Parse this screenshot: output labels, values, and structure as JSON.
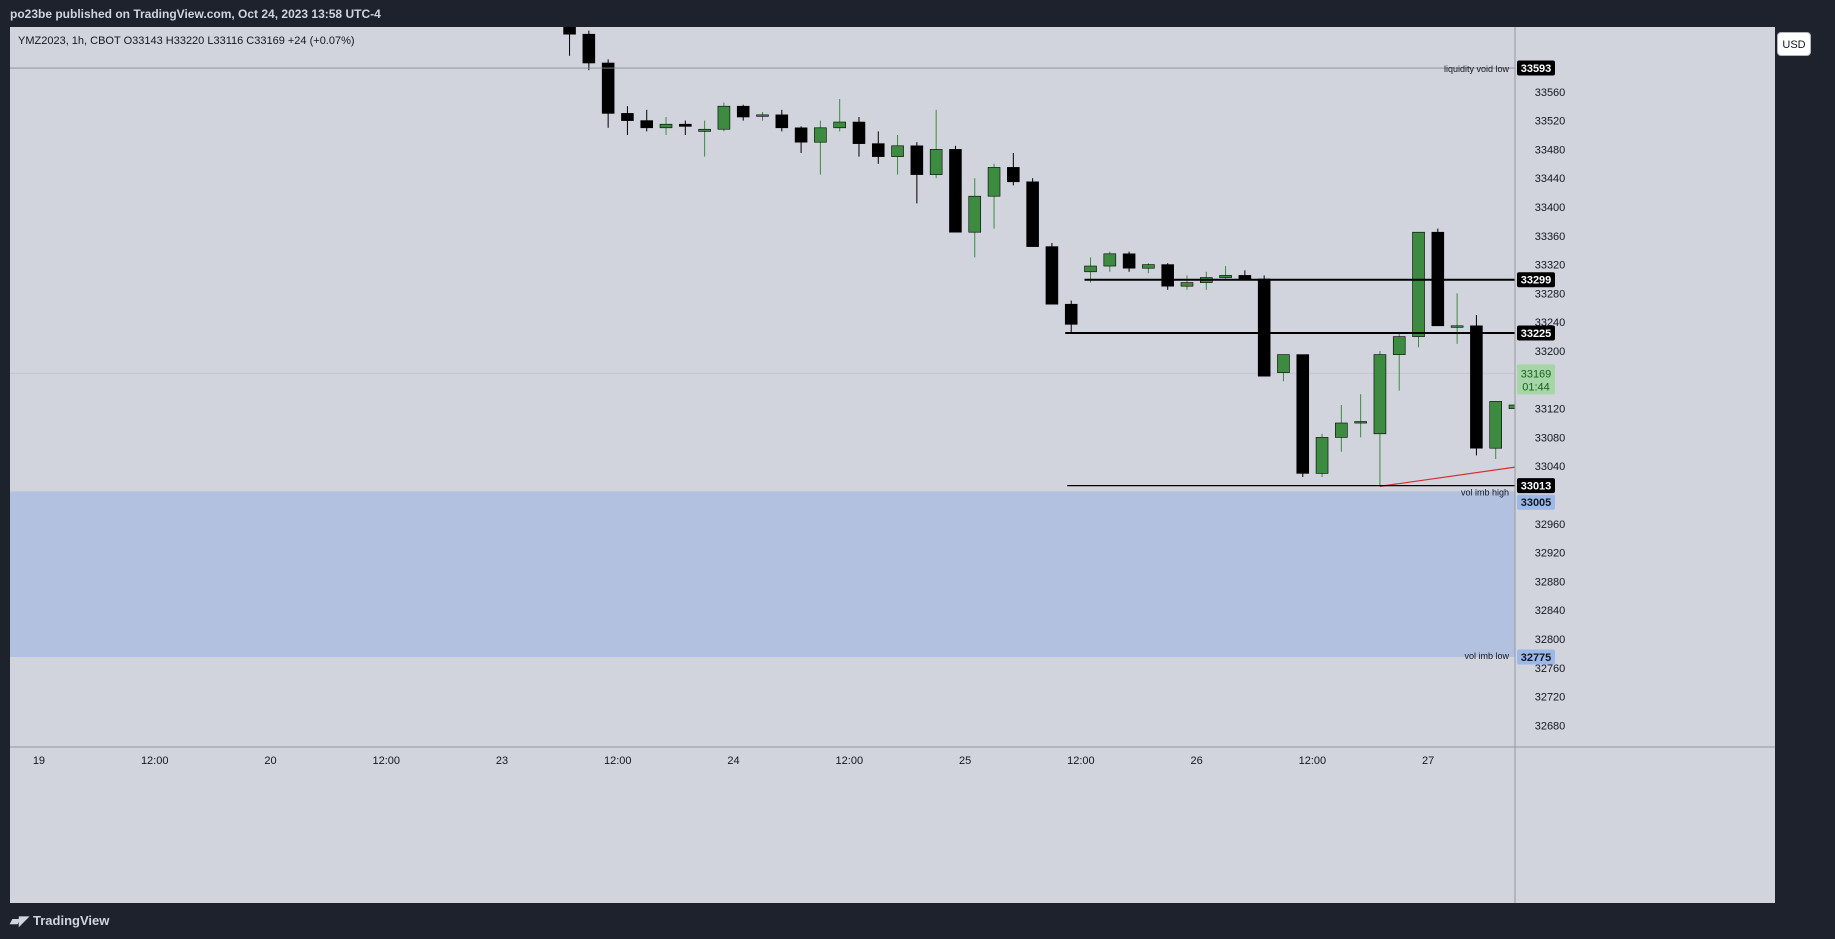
{
  "header": {
    "publisher_line": "po23be published on TradingView.com, Oct 24, 2023 13:58 UTC-4"
  },
  "symbol_info": {
    "text": "YMZ2023, 1h, CBOT  O33143  H33220  L33116  C33169  +24 (+0.07%)"
  },
  "currency_button": {
    "label": "USD"
  },
  "footer": {
    "logo_text": "TradingView"
  },
  "chart_data": {
    "type": "candlestick",
    "symbol": "YMZ2023",
    "interval": "1h",
    "exchange": "CBOT",
    "ohlc_readout": {
      "open": 33143,
      "high": 33220,
      "low": 33116,
      "close": 33169,
      "change": 24,
      "change_pct": 0.07
    },
    "ylim": [
      32650,
      33650
    ],
    "y_ticks": [
      33560,
      33520,
      33480,
      33440,
      33400,
      33360,
      33320,
      33280,
      33240,
      33200,
      33120,
      33080,
      33040,
      32960,
      32920,
      32880,
      32840,
      32800,
      32760,
      32720,
      32680
    ],
    "x_tick_labels": [
      {
        "label": "19",
        "index": -27.5
      },
      {
        "label": "12:00",
        "index": -21.5
      },
      {
        "label": "20",
        "index": -15.5
      },
      {
        "label": "12:00",
        "index": -9.5
      },
      {
        "label": "23",
        "index": -3.5
      },
      {
        "label": "12:00",
        "index": 2.5
      },
      {
        "label": "24",
        "index": 8.5
      },
      {
        "label": "12:00",
        "index": 14.5
      },
      {
        "label": "25",
        "index": 20.5
      },
      {
        "label": "12:00",
        "index": 26.5
      },
      {
        "label": "26",
        "index": 32.5
      },
      {
        "label": "12:00",
        "index": 38.5
      },
      {
        "label": "27",
        "index": 44.5
      }
    ],
    "xlim_index": [
      -29,
      49
    ],
    "candles": [
      [
        33650,
        33665,
        33610,
        33640
      ],
      [
        33640,
        33645,
        33590,
        33600
      ],
      [
        33600,
        33605,
        33510,
        33530
      ],
      [
        33530,
        33540,
        33500,
        33520
      ],
      [
        33520,
        33535,
        33505,
        33510
      ],
      [
        33510,
        33525,
        33500,
        33515
      ],
      [
        33515,
        33520,
        33500,
        33512
      ],
      [
        33505,
        33520,
        33470,
        33508
      ],
      [
        33508,
        33545,
        33505,
        33540
      ],
      [
        33540,
        33542,
        33520,
        33525
      ],
      [
        33527,
        33532,
        33520,
        33528
      ],
      [
        33528,
        33535,
        33505,
        33510
      ],
      [
        33510,
        33512,
        33475,
        33490
      ],
      [
        33490,
        33520,
        33445,
        33510
      ],
      [
        33510,
        33550,
        33505,
        33518
      ],
      [
        33518,
        33525,
        33470,
        33488
      ],
      [
        33488,
        33505,
        33460,
        33470
      ],
      [
        33470,
        33500,
        33445,
        33485
      ],
      [
        33485,
        33490,
        33405,
        33445
      ],
      [
        33445,
        33535,
        33440,
        33480
      ],
      [
        33480,
        33485,
        33365,
        33365
      ],
      [
        33365,
        33440,
        33330,
        33415
      ],
      [
        33415,
        33460,
        33370,
        33455
      ],
      [
        33455,
        33475,
        33430,
        33435
      ],
      [
        33435,
        33440,
        33345,
        33345
      ],
      [
        33345,
        33350,
        33265,
        33265
      ],
      [
        33265,
        33270,
        33225,
        33237
      ],
      [
        33310,
        33330,
        33295,
        33318
      ],
      [
        33318,
        33338,
        33310,
        33335
      ],
      [
        33335,
        33338,
        33310,
        33315
      ],
      [
        33315,
        33322,
        33308,
        33320
      ],
      [
        33320,
        33322,
        33285,
        33290
      ],
      [
        33290,
        33305,
        33285,
        33295
      ],
      [
        33295,
        33310,
        33285,
        33302
      ],
      [
        33302,
        33318,
        33298,
        33305
      ],
      [
        33305,
        33312,
        33298,
        33300
      ],
      [
        33300,
        33305,
        33165,
        33165
      ],
      [
        33170,
        33195,
        33158,
        33195
      ],
      [
        33195,
        33195,
        33025,
        33030
      ],
      [
        33030,
        33085,
        33025,
        33080
      ],
      [
        33080,
        33125,
        33060,
        33100
      ],
      [
        33100,
        33140,
        33080,
        33102
      ],
      [
        33085,
        33200,
        33012,
        33195
      ],
      [
        33195,
        33225,
        33145,
        33220
      ],
      [
        33220,
        33365,
        33205,
        33365
      ],
      [
        33365,
        33370,
        33235,
        33235
      ],
      [
        33235,
        33280,
        33210,
        33235
      ],
      [
        33235,
        33250,
        33055,
        33065
      ],
      [
        33065,
        33130,
        33050,
        33130
      ],
      [
        33120,
        33140,
        33115,
        33125
      ],
      [
        33125,
        33140,
        33110,
        33135
      ],
      [
        33135,
        33142,
        33095,
        33100
      ],
      [
        33100,
        33112,
        33085,
        33085
      ],
      [
        33085,
        33125,
        33075,
        33120
      ],
      [
        33120,
        33130,
        33105,
        33112
      ],
      [
        33110,
        33135,
        33105,
        33132
      ],
      [
        33132,
        33140,
        33120,
        33132
      ],
      [
        33132,
        33165,
        33125,
        33155
      ],
      [
        33155,
        33160,
        33085,
        33115
      ],
      [
        33115,
        33152,
        33075,
        33150
      ],
      [
        33150,
        33185,
        33135,
        33177
      ],
      [
        33177,
        33215,
        33170,
        33214
      ],
      [
        33214,
        33245,
        33205,
        33225
      ],
      [
        33225,
        33245,
        33200,
        33245
      ],
      [
        33245,
        33330,
        33215,
        33325
      ],
      [
        33325,
        33395,
        33290,
        33362
      ],
      [
        33362,
        33365,
        33285,
        33285
      ],
      [
        33285,
        33300,
        33120,
        33143
      ],
      [
        33143,
        33220,
        33116,
        33169
      ]
    ],
    "horizontal_lines": [
      {
        "price": 33593,
        "label": "liquidity void low",
        "badge": "33593",
        "style": "thin"
      },
      {
        "price": 33299,
        "label": "",
        "badge": "33299",
        "style": "thick"
      },
      {
        "price": 33225,
        "label": "",
        "badge": "33225",
        "style": "thick"
      },
      {
        "price": 33013,
        "label": "",
        "badge": "33013",
        "style": "medium"
      }
    ],
    "zone": {
      "top": 33005,
      "bottom": 32775,
      "top_label": "vol imb high",
      "bottom_label": "vol imb low",
      "top_badge": "33005",
      "bottom_badge": "32775"
    },
    "last_price": {
      "value": "33169",
      "countdown": "01:44"
    },
    "trendline": {
      "from": {
        "index": 42,
        "price": 33012
      },
      "to": {
        "index": 58,
        "price": 33073
      },
      "mark_label": "x"
    },
    "colors": {
      "up": "#3d8b40",
      "down": "#000000",
      "highlight": "#787b86",
      "zone": "#b2c1e0",
      "zone_badge": "#9bb8e8",
      "trendline": "#d32f2f",
      "last_price_badge": "#a5d6a7"
    }
  }
}
